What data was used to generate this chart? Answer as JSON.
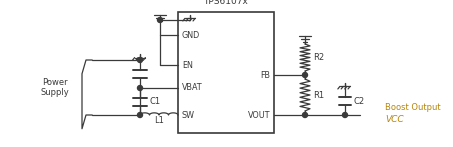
{
  "bg_color": "#ffffff",
  "line_color": "#3a3a3a",
  "text_color": "#3a3a3a",
  "orange_color": "#b8860b",
  "figsize": [
    4.53,
    1.47
  ],
  "dpi": 100,
  "ic_label": "TPS6107x",
  "title_line1": "VCC",
  "title_line2": "Boost Output",
  "power_supply_label": "Power\nSupply"
}
